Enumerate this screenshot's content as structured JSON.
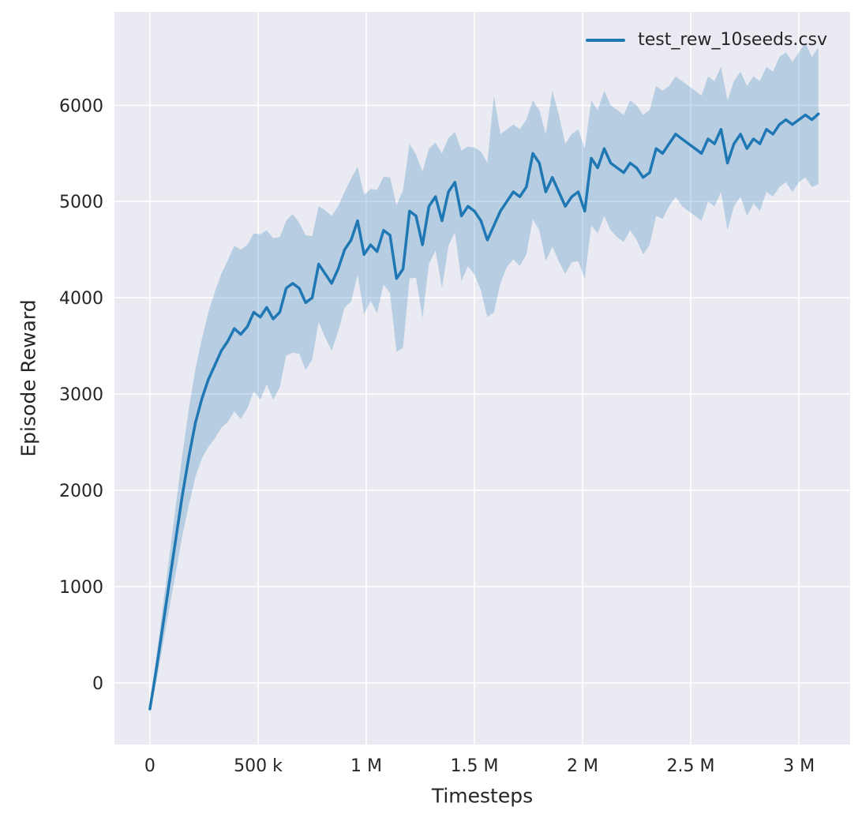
{
  "chart_data": {
    "type": "line",
    "title": "",
    "xlabel": "Timesteps",
    "ylabel": "Episode Reward",
    "grid": true,
    "background": "#eaeaf2",
    "grid_color": "#ffffff",
    "tick_label_color": "#262626",
    "band_opacity": 0.25,
    "legend_position": "upper right",
    "legend": [
      {
        "name": "test_rew_10seeds.csv",
        "color": "#1f77b4"
      }
    ],
    "xlim": [
      -164000,
      3237000
    ],
    "ylim": [
      -640,
      6970
    ],
    "x_ticks": [
      0,
      500000,
      1000000,
      1500000,
      2000000,
      2500000,
      3000000
    ],
    "x_tick_labels": [
      "0",
      "500 k",
      "1 M",
      "1.5 M",
      "2 M",
      "2.5 M",
      "3 M"
    ],
    "y_ticks": [
      0,
      1000,
      2000,
      3000,
      4000,
      5000,
      6000
    ],
    "y_tick_labels": [
      "0",
      "1000",
      "2000",
      "3000",
      "4000",
      "5000",
      "6000"
    ],
    "series": [
      {
        "name": "test_rew_10seeds.csv",
        "color": "#1f77b4",
        "x": [
          0,
          30000,
          60000,
          90000,
          120000,
          150000,
          180000,
          210000,
          240000,
          270000,
          300000,
          330000,
          360000,
          390000,
          420000,
          450000,
          480000,
          510000,
          540000,
          570000,
          600000,
          630000,
          660000,
          690000,
          720000,
          750000,
          780000,
          810000,
          840000,
          870000,
          900000,
          930000,
          960000,
          990000,
          1020000,
          1050000,
          1080000,
          1110000,
          1140000,
          1170000,
          1200000,
          1230000,
          1260000,
          1290000,
          1320000,
          1350000,
          1380000,
          1410000,
          1440000,
          1470000,
          1500000,
          1530000,
          1560000,
          1590000,
          1620000,
          1650000,
          1680000,
          1710000,
          1740000,
          1770000,
          1800000,
          1830000,
          1860000,
          1890000,
          1920000,
          1950000,
          1980000,
          2010000,
          2040000,
          2070000,
          2100000,
          2130000,
          2160000,
          2190000,
          2220000,
          2250000,
          2280000,
          2310000,
          2340000,
          2370000,
          2400000,
          2430000,
          2460000,
          2490000,
          2520000,
          2550000,
          2580000,
          2610000,
          2640000,
          2670000,
          2700000,
          2730000,
          2760000,
          2790000,
          2820000,
          2850000,
          2880000,
          2910000,
          2940000,
          2970000,
          3000000,
          3030000,
          3060000,
          3090000
        ],
        "mean": [
          -270,
          150,
          600,
          1050,
          1500,
          1950,
          2350,
          2700,
          2950,
          3150,
          3300,
          3450,
          3550,
          3680,
          3620,
          3700,
          3850,
          3800,
          3900,
          3780,
          3850,
          4100,
          4150,
          4100,
          3950,
          4000,
          4350,
          4250,
          4150,
          4300,
          4500,
          4600,
          4800,
          4450,
          4550,
          4480,
          4700,
          4650,
          4200,
          4300,
          4900,
          4850,
          4550,
          4950,
          5050,
          4800,
          5100,
          5200,
          4850,
          4950,
          4900,
          4800,
          4600,
          4750,
          4900,
          5000,
          5100,
          5050,
          5150,
          5500,
          5400,
          5100,
          5250,
          5100,
          4950,
          5050,
          5100,
          4900,
          5450,
          5350,
          5550,
          5400,
          5350,
          5300,
          5400,
          5350,
          5250,
          5300,
          5550,
          5500,
          5600,
          5700,
          5650,
          5600,
          5550,
          5500,
          5650,
          5600,
          5750,
          5400,
          5600,
          5700,
          5550,
          5650,
          5600,
          5750,
          5700,
          5800,
          5850,
          5800,
          5850,
          5900,
          5850,
          5910
        ],
        "lower": [
          -330,
          20,
          400,
          780,
          1150,
          1530,
          1850,
          2140,
          2330,
          2450,
          2540,
          2650,
          2710,
          2820,
          2740,
          2850,
          3030,
          2940,
          3100,
          2940,
          3070,
          3400,
          3430,
          3420,
          3250,
          3360,
          3750,
          3590,
          3450,
          3650,
          3900,
          3960,
          4240,
          3830,
          3970,
          3840,
          4140,
          4050,
          3440,
          3480,
          4200,
          4210,
          3790,
          4350,
          4490,
          4100,
          4540,
          4680,
          4170,
          4330,
          4240,
          4080,
          3800,
          3850,
          4150,
          4320,
          4400,
          4330,
          4450,
          4820,
          4700,
          4380,
          4530,
          4380,
          4250,
          4370,
          4380,
          4200,
          4750,
          4670,
          4850,
          4700,
          4630,
          4580,
          4700,
          4600,
          4450,
          4550,
          4850,
          4820,
          4950,
          5050,
          4950,
          4900,
          4850,
          4800,
          5000,
          4950,
          5100,
          4700,
          4950,
          5050,
          4850,
          4980,
          4900,
          5100,
          5050,
          5150,
          5200,
          5100,
          5200,
          5250,
          5150,
          5180
        ],
        "upper": [
          -210,
          280,
          800,
          1320,
          1850,
          2370,
          2850,
          3260,
          3570,
          3850,
          4060,
          4250,
          4390,
          4540,
          4500,
          4550,
          4670,
          4660,
          4700,
          4620,
          4630,
          4800,
          4870,
          4780,
          4650,
          4640,
          4950,
          4910,
          4850,
          4950,
          5100,
          5240,
          5360,
          5070,
          5130,
          5120,
          5260,
          5250,
          4960,
          5120,
          5600,
          5490,
          5310,
          5550,
          5610,
          5500,
          5660,
          5720,
          5530,
          5570,
          5560,
          5520,
          5400,
          6100,
          5700,
          5750,
          5800,
          5750,
          5850,
          6050,
          5950,
          5700,
          6150,
          5900,
          5600,
          5700,
          5750,
          5550,
          6050,
          5950,
          6150,
          6000,
          5950,
          5900,
          6050,
          6000,
          5900,
          5950,
          6200,
          6150,
          6200,
          6300,
          6250,
          6200,
          6150,
          6100,
          6300,
          6250,
          6400,
          6050,
          6250,
          6350,
          6200,
          6300,
          6250,
          6400,
          6350,
          6500,
          6550,
          6450,
          6550,
          6650,
          6500,
          6600
        ]
      }
    ]
  }
}
